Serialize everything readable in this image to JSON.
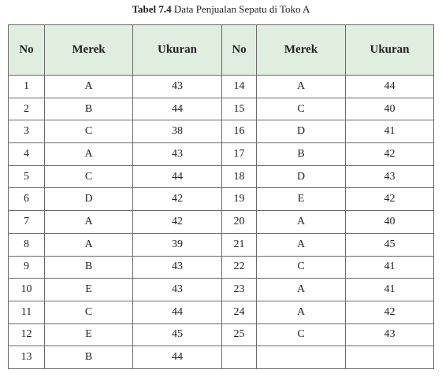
{
  "caption": {
    "label": "Tabel 7.4",
    "text": "Data Penjualan Sepatu di Toko A"
  },
  "table": {
    "headers": [
      "No",
      "Merek",
      "Ukuran",
      "No",
      "Merek",
      "Ukuran"
    ],
    "rows": [
      [
        1,
        "A",
        43,
        14,
        "A",
        44
      ],
      [
        2,
        "B",
        44,
        15,
        "C",
        40
      ],
      [
        3,
        "C",
        38,
        16,
        "D",
        41
      ],
      [
        4,
        "A",
        43,
        17,
        "B",
        42
      ],
      [
        5,
        "C",
        44,
        18,
        "D",
        43
      ],
      [
        6,
        "D",
        42,
        19,
        "E",
        42
      ],
      [
        7,
        "A",
        42,
        20,
        "A",
        40
      ],
      [
        8,
        "A",
        39,
        21,
        "A",
        45
      ],
      [
        9,
        "B",
        43,
        22,
        "C",
        41
      ],
      [
        10,
        "E",
        43,
        23,
        "A",
        41
      ],
      [
        11,
        "C",
        44,
        24,
        "A",
        42
      ],
      [
        12,
        "E",
        45,
        25,
        "C",
        43
      ],
      [
        13,
        "B",
        44
      ]
    ]
  }
}
